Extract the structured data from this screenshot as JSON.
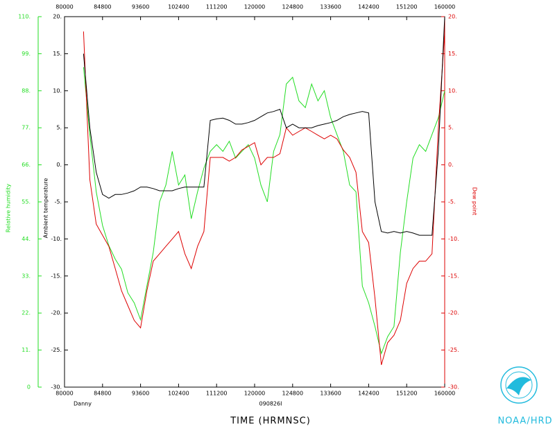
{
  "chart_data": {
    "type": "line",
    "storm": "Danny",
    "flight": "090826I",
    "xlabel": "TIME (HRMNSC)",
    "agency": "NOAA/HRD",
    "xlim": [
      28800,
      57600
    ],
    "xticks": [
      {
        "value": 28800,
        "label": "80000"
      },
      {
        "value": 31680,
        "label": "84800"
      },
      {
        "value": 34560,
        "label": "93600"
      },
      {
        "value": 37440,
        "label": "102400"
      },
      {
        "value": 40320,
        "label": "111200"
      },
      {
        "value": 43200,
        "label": "120000"
      },
      {
        "value": 46080,
        "label": "124800"
      },
      {
        "value": 48960,
        "label": "133600"
      },
      {
        "value": 51840,
        "label": "142400"
      },
      {
        "value": 54720,
        "label": "151200"
      },
      {
        "value": 57600,
        "label": "160000"
      }
    ],
    "ylim": [
      -30,
      20
    ],
    "yticks": [
      {
        "value": -30,
        "label": "-30."
      },
      {
        "value": -25,
        "label": "-25."
      },
      {
        "value": -20,
        "label": "-20."
      },
      {
        "value": -15,
        "label": "-15."
      },
      {
        "value": -10,
        "label": "-10."
      },
      {
        "value": -5,
        "label": "-5."
      },
      {
        "value": 0,
        "label": "0."
      },
      {
        "value": 5,
        "label": "5."
      },
      {
        "value": 10,
        "label": "10."
      },
      {
        "value": 15,
        "label": "15."
      },
      {
        "value": 20,
        "label": "20."
      }
    ],
    "y2lim": [
      -30,
      20
    ],
    "y2ticks": [
      {
        "value": -30,
        "label": "-30."
      },
      {
        "value": -25,
        "label": "-25."
      },
      {
        "value": -20,
        "label": "-20."
      },
      {
        "value": -15,
        "label": "-15."
      },
      {
        "value": -10,
        "label": "-10."
      },
      {
        "value": -5,
        "label": "-5."
      },
      {
        "value": 0,
        "label": "0."
      },
      {
        "value": 5,
        "label": "5."
      },
      {
        "value": 10,
        "label": "10."
      },
      {
        "value": 15,
        "label": "15."
      },
      {
        "value": 20,
        "label": "20."
      }
    ],
    "y3lim": [
      0,
      110
    ],
    "y3ticks": [
      0,
      {
        "value": 11,
        "label": "11."
      },
      {
        "value": 22,
        "label": "22."
      },
      {
        "value": 33,
        "label": "33."
      },
      {
        "value": 44,
        "label": "44."
      },
      {
        "value": 55,
        "label": "55."
      },
      {
        "value": 66,
        "label": "66."
      },
      {
        "value": 77,
        "label": "77."
      },
      {
        "value": 88,
        "label": "88."
      },
      {
        "value": 99,
        "label": "99."
      },
      {
        "value": 110,
        "label": "110."
      }
    ],
    "x": [
      30240,
      30720,
      31200,
      31680,
      32160,
      32640,
      33120,
      33600,
      34080,
      34560,
      35040,
      35520,
      36000,
      36480,
      36960,
      37440,
      37920,
      38400,
      38880,
      39360,
      39840,
      40320,
      40800,
      41280,
      41760,
      42240,
      42720,
      43200,
      43680,
      44160,
      44640,
      45120,
      45600,
      46080,
      46560,
      47040,
      47520,
      48000,
      48480,
      48960,
      49440,
      49920,
      50400,
      50880,
      51360,
      51840,
      52320,
      52800,
      53280,
      53760,
      54240,
      54720,
      55200,
      55680,
      56160,
      56640,
      57120,
      57600
    ],
    "series": [
      {
        "name": "Relative humidity",
        "color": "#22dd22",
        "axis": "y3",
        "values": [
          95,
          75,
          58,
          48,
          42,
          38,
          35,
          28,
          25,
          20,
          30,
          40,
          55,
          60,
          70,
          60,
          63,
          50,
          58,
          65,
          70,
          72,
          70,
          73,
          68,
          70,
          72,
          68,
          60,
          55,
          70,
          75,
          90,
          92,
          85,
          83,
          90,
          85,
          88,
          80,
          75,
          70,
          60,
          58,
          30,
          25,
          18,
          10,
          15,
          18,
          40,
          55,
          68,
          72,
          70,
          75,
          80,
          88
        ]
      },
      {
        "name": "Dew point",
        "color": "#dd0000",
        "axis": "y2",
        "values": [
          18,
          -2,
          -8,
          -9.5,
          -11,
          -14,
          -17,
          -19,
          -21,
          -22,
          -17,
          -13,
          -12,
          -11,
          -10,
          -9,
          -12,
          -14,
          -11,
          -9,
          1,
          1,
          1,
          0.5,
          1,
          2,
          2.5,
          3,
          0,
          1,
          1,
          1.5,
          5,
          4,
          4.5,
          5,
          4.5,
          4,
          3.5,
          4,
          3.5,
          2,
          1,
          -1,
          -9,
          -10.5,
          -18,
          -27,
          -24,
          -23,
          -21,
          -16,
          -14,
          -13,
          -13,
          -12,
          5,
          18
        ]
      },
      {
        "name": "Ambient temperature",
        "color": "#000000",
        "axis": "y",
        "values": [
          15,
          5,
          -1,
          -4,
          -4.5,
          -4,
          -4,
          -3.8,
          -3.5,
          -3,
          -3,
          -3.2,
          -3.5,
          -3.5,
          -3.5,
          -3.2,
          -3,
          -3,
          -3,
          -3,
          6,
          6.2,
          6.3,
          6,
          5.5,
          5.5,
          5.7,
          6,
          6.5,
          7,
          7.2,
          7.5,
          5,
          5.5,
          5,
          5,
          5,
          5.3,
          5.5,
          5.7,
          6,
          6.5,
          6.8,
          7,
          7.2,
          7,
          -5,
          -9,
          -9.2,
          -9,
          -9.2,
          -9,
          -9.2,
          -9.5,
          -9.5,
          -9.5,
          2,
          20
        ]
      }
    ]
  }
}
